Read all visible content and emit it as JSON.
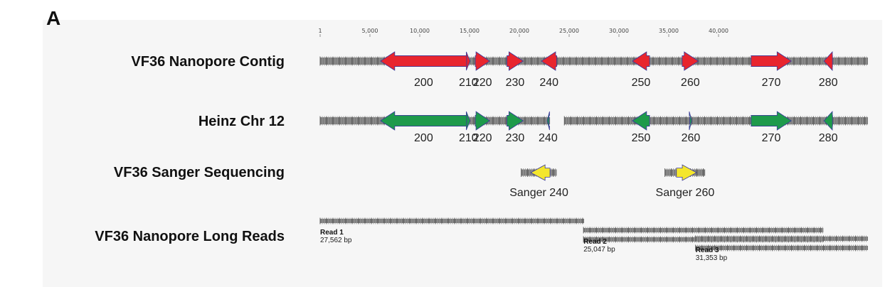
{
  "panel_letter": "A",
  "rows": [
    {
      "label": "VF36 Nanopore Contig"
    },
    {
      "label": "Heinz Chr 12"
    },
    {
      "label": "VF36 Sanger Sequencing"
    },
    {
      "label": "VF36 Nanopore Long Reads"
    }
  ],
  "colors": {
    "contig_gene": "#e8252e",
    "heinz_gene": "#1e9a4b",
    "sanger_gene": "#f4e62c",
    "backbone": "#7a7a7a",
    "gene_outline": "#3a3a9a"
  },
  "axis": {
    "ticks": [
      {
        "value": 1,
        "label": "1"
      },
      {
        "value": 5000,
        "label": "5,000"
      },
      {
        "value": 10000,
        "label": "10,000"
      },
      {
        "value": 15000,
        "label": "15,000"
      },
      {
        "value": 20000,
        "label": "20,000"
      },
      {
        "value": 25000,
        "label": "25,000"
      },
      {
        "value": 30000,
        "label": "30,000"
      },
      {
        "value": 35000,
        "label": "35,000"
      },
      {
        "value": 40000,
        "label": "40,000"
      }
    ]
  },
  "contig": {
    "genes": [
      {
        "label": "200",
        "start": 6300,
        "end": 15300,
        "dir": "left"
      },
      {
        "label": "210",
        "start": 15300,
        "end": 15650,
        "dir": "right"
      },
      {
        "label": "220",
        "start": 16200,
        "end": 17700,
        "dir": "right"
      },
      {
        "label": "230",
        "start": 19500,
        "end": 21200,
        "dir": "right"
      },
      {
        "label": "240",
        "start": 23100,
        "end": 24700,
        "dir": "left"
      },
      {
        "label": "250",
        "start": 32600,
        "end": 34400,
        "dir": "left"
      },
      {
        "label": "260",
        "start": 37800,
        "end": 39500,
        "dir": "right"
      },
      {
        "label": "270",
        "start": 45000,
        "end": 49200,
        "dir": "right"
      },
      {
        "label": "280",
        "start": 52600,
        "end": 53500,
        "dir": "left"
      }
    ]
  },
  "heinz": {
    "genes": [
      {
        "label": "200",
        "start": 6300,
        "end": 15300,
        "dir": "left"
      },
      {
        "label": "210",
        "start": 15300,
        "end": 15650,
        "dir": "right"
      },
      {
        "label": "220",
        "start": 16200,
        "end": 17700,
        "dir": "right"
      },
      {
        "label": "230",
        "start": 19500,
        "end": 21200,
        "dir": "right"
      },
      {
        "label": "240",
        "start": 23700,
        "end": 23900,
        "dir": "left"
      },
      {
        "label": "250",
        "start": 32600,
        "end": 34400,
        "dir": "left"
      },
      {
        "label": "260",
        "start": 38600,
        "end": 38800,
        "dir": "right"
      },
      {
        "label": "270",
        "start": 45000,
        "end": 49200,
        "dir": "right"
      },
      {
        "label": "280",
        "start": 52600,
        "end": 53500,
        "dir": "left"
      }
    ],
    "backbone_segments": [
      [
        0,
        24000
      ],
      [
        25500,
        38600
      ],
      [
        38800,
        57200
      ]
    ]
  },
  "sanger": {
    "fragments": [
      {
        "label": "Sanger 240",
        "start": 21000,
        "end": 24700,
        "gene_start": 22000,
        "gene_end": 24000,
        "dir": "left"
      },
      {
        "label": "Sanger 260",
        "start": 36000,
        "end": 40200,
        "gene_start": 37200,
        "gene_end": 39300,
        "dir": "right"
      }
    ]
  },
  "reads": [
    {
      "name": "Read 1",
      "length": "27,562 bp",
      "start": 0,
      "end": 27562
    },
    {
      "name": "Read 2",
      "length": "25,047 bp",
      "start": 27500,
      "end": 52547
    },
    {
      "name": "Read 3",
      "length": "31,353 bp",
      "start": 39200,
      "end": 70553
    }
  ]
}
